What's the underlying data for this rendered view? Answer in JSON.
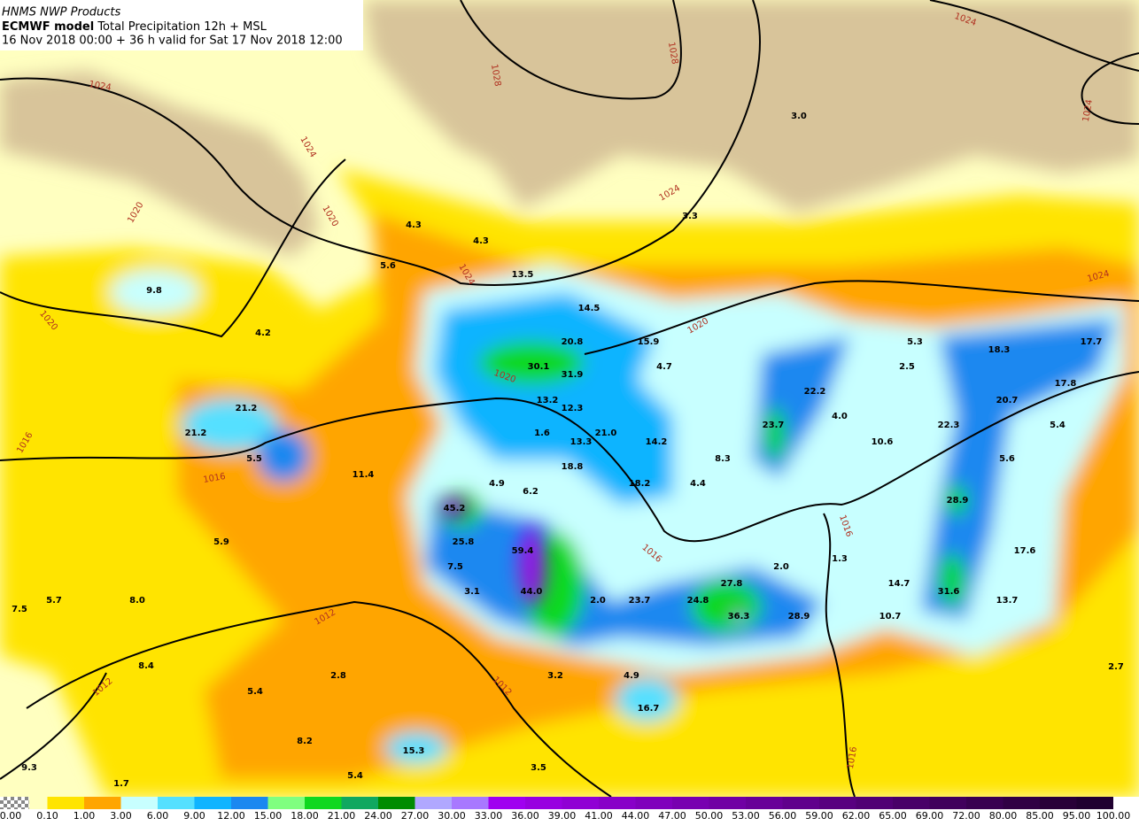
{
  "header": {
    "source": "HNMS NWP Products",
    "model": "ECMWF model",
    "product": "Total Precipitation 12h + MSL",
    "run": "16 Nov 2018 00:00 + 36 h valid for Sat 17 Nov 2018 12:00"
  },
  "map": {
    "labels": [
      "9.8",
      "4.2",
      "21.2",
      "21.2",
      "5.5",
      "11.4",
      "5.9",
      "5.7",
      "7.5",
      "8.0",
      "8.4",
      "5.4",
      "2.8",
      "8.2",
      "9.3",
      "1.7",
      "15.3",
      "5.4",
      "3.5",
      "3.2",
      "4.9",
      "16.7",
      "3.1",
      "7.5",
      "25.8",
      "45.2",
      "59.4",
      "44.0",
      "2.0",
      "23.7",
      "24.8",
      "27.8",
      "36.3",
      "28.9",
      "2.0",
      "1.3",
      "14.7",
      "10.7",
      "31.6",
      "13.7",
      "17.6",
      "28.9",
      "5.6",
      "22.3",
      "20.7",
      "17.8",
      "5.4",
      "17.7",
      "18.3",
      "5.3",
      "2.5",
      "4.0",
      "10.6",
      "22.2",
      "23.7",
      "8.3",
      "4.4",
      "18.2",
      "14.2",
      "21.0",
      "13.3",
      "18.8",
      "6.2",
      "4.9",
      "1.6",
      "12.3",
      "13.2",
      "31.9",
      "30.1",
      "20.8",
      "14.5",
      "15.9",
      "4.7",
      "13.5",
      "4.3",
      "4.3",
      "5.6",
      "3.3",
      "3.0",
      "2.7"
    ],
    "isobar_labels": [
      "1024",
      "1024",
      "1020",
      "1020",
      "1024",
      "1028",
      "1028",
      "1024",
      "1024",
      "1024",
      "1020",
      "1024",
      "1020",
      "1016",
      "1016",
      "1012",
      "1012",
      "1016",
      "1016",
      "1016",
      "1012",
      "1020"
    ]
  },
  "colorbar": {
    "labels": [
      "0.00",
      "0.10",
      "1.00",
      "3.00",
      "6.00",
      "9.00",
      "12.00",
      "15.00",
      "18.00",
      "21.00",
      "24.00",
      "27.00",
      "30.00",
      "33.00",
      "36.00",
      "39.00",
      "41.00",
      "44.00",
      "47.00",
      "50.00",
      "53.00",
      "56.00",
      "59.00",
      "62.00",
      "65.00",
      "69.00",
      "72.00",
      "80.00",
      "85.00",
      "95.00",
      "100.00"
    ],
    "colors": [
      "#ffffc0",
      "#ffe400",
      "#ffa500",
      "#c8ffff",
      "#55e0ff",
      "#10b4ff",
      "#1a88f0",
      "#80ff80",
      "#10d820",
      "#10a860",
      "#008c00",
      "#b0a8ff",
      "#a878ff",
      "#a000f0",
      "#9800e0",
      "#9000d4",
      "#8800c8",
      "#8000bc",
      "#7800b0",
      "#7000a4",
      "#680098",
      "#60008c",
      "#580080",
      "#500074",
      "#480068",
      "#40005c",
      "#380050",
      "#300044",
      "#280038",
      "#200030"
    ]
  }
}
